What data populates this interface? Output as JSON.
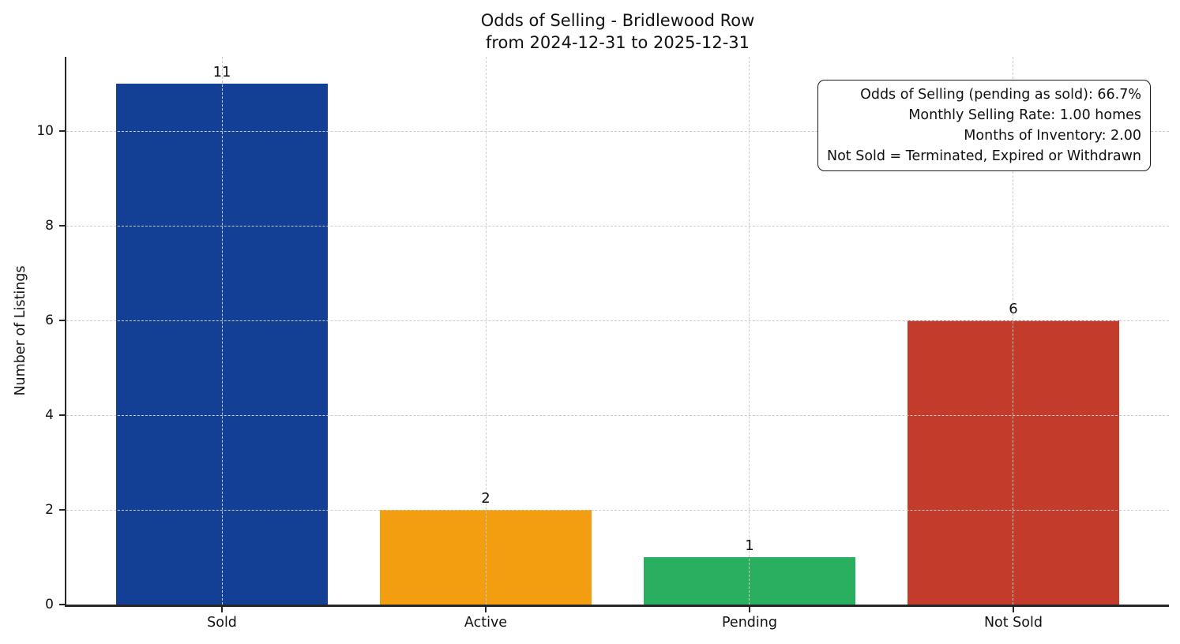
{
  "chart_data": {
    "type": "bar",
    "title": "Odds of Selling - Bridlewood Row",
    "subtitle": "from 2024-12-31 to 2025-12-31",
    "categories": [
      "Sold",
      "Active",
      "Pending",
      "Not Sold"
    ],
    "values": [
      11,
      2,
      1,
      6
    ],
    "bar_colors": [
      "#134094",
      "#f39d11",
      "#2aae5f",
      "#c23b2b"
    ],
    "xlabel": "",
    "ylabel": "Number of Listings",
    "ylim": [
      0,
      11.57
    ],
    "yticks": [
      0,
      2,
      4,
      6,
      8,
      10
    ],
    "grid": {
      "style": "dashed",
      "color": "#cccccc",
      "horizontal": true,
      "vertical": true
    },
    "bar_width_fraction": 0.8,
    "legend": "none",
    "annotation": {
      "align": "right",
      "position": "top-right",
      "border_color": "#1a1a1a",
      "lines": [
        "Odds of Selling (pending as sold): 66.7%",
        "Monthly Selling Rate: 1.00 homes",
        "Months of Inventory: 2.00",
        "Not Sold = Terminated, Expired or Withdrawn"
      ]
    }
  }
}
